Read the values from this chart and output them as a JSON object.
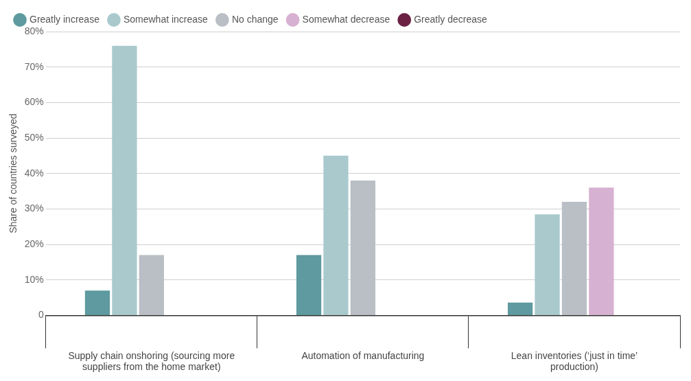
{
  "chart_data": {
    "type": "bar",
    "ylabel": "Share of countries surveyed",
    "categories": [
      "Supply chain onshoring (sourcing more suppliers from the home market)",
      "Automation of manufacturing",
      "Lean inventories (‘just in time’ production)"
    ],
    "series": [
      {
        "name": "Greatly increase",
        "color": "#5e9a9f",
        "values": [
          7,
          17,
          3.6
        ]
      },
      {
        "name": "Somewhat increase",
        "color": "#a9c9cd",
        "values": [
          76,
          45,
          28.5
        ]
      },
      {
        "name": "No change",
        "color": "#b9bfc4",
        "values": [
          17,
          38,
          32
        ]
      },
      {
        "name": "Somewhat decrease",
        "color": "#d7b1d1",
        "values": [
          null,
          null,
          36
        ]
      },
      {
        "name": "Greatly decrease",
        "color": "#6a2142",
        "values": [
          null,
          null,
          null
        ]
      }
    ],
    "ylim": [
      0,
      80
    ],
    "yticks": [
      0,
      {
        "value": 10,
        "label": "10%"
      },
      {
        "value": 20,
        "label": "20%"
      },
      {
        "value": 30,
        "label": "30%"
      },
      {
        "value": 40,
        "label": "40%"
      },
      {
        "value": 50,
        "label": "50%"
      },
      {
        "value": 60,
        "label": "60%"
      },
      {
        "value": 70,
        "label": "70%"
      },
      {
        "value": 80,
        "label": "80%"
      }
    ],
    "grid": "y",
    "legend": "top left"
  }
}
